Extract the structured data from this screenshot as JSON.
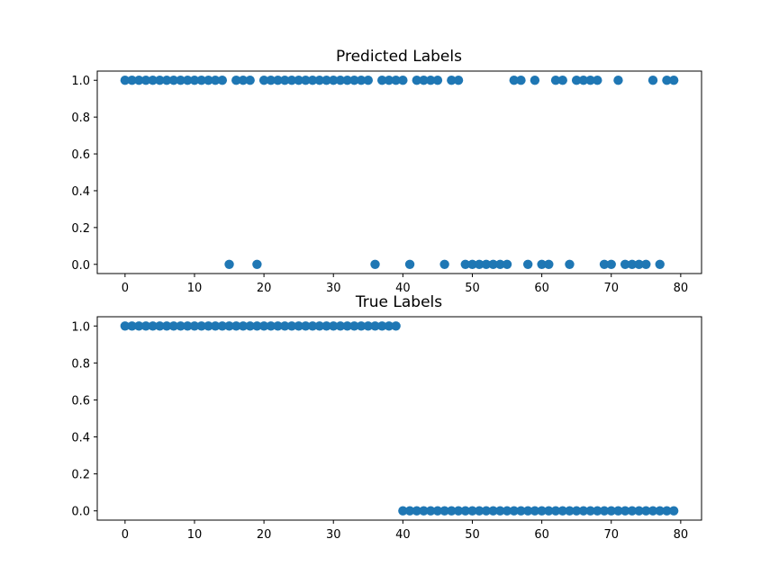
{
  "chart_data": [
    {
      "type": "scatter",
      "title": "Predicted Labels",
      "xlabel": "",
      "ylabel": "",
      "xlim": [
        -4,
        83
      ],
      "ylim": [
        -0.05,
        1.05
      ],
      "xticks": [
        0,
        10,
        20,
        30,
        40,
        50,
        60,
        70,
        80
      ],
      "yticks": [
        0.0,
        0.2,
        0.4,
        0.6,
        0.8,
        1.0
      ],
      "xtick_labels": [
        "0",
        "10",
        "20",
        "30",
        "40",
        "50",
        "60",
        "70",
        "80"
      ],
      "ytick_labels": [
        "0.0",
        "0.2",
        "0.4",
        "0.6",
        "0.8",
        "1.0"
      ],
      "grid": false,
      "series": [
        {
          "color": "#1f77b4",
          "x": [
            0,
            1,
            2,
            3,
            4,
            5,
            6,
            7,
            8,
            9,
            10,
            11,
            12,
            13,
            14,
            15,
            16,
            17,
            18,
            19,
            20,
            21,
            22,
            23,
            24,
            25,
            26,
            27,
            28,
            29,
            30,
            31,
            32,
            33,
            34,
            35,
            36,
            37,
            38,
            39,
            40,
            41,
            42,
            43,
            44,
            45,
            46,
            47,
            48,
            49,
            50,
            51,
            52,
            53,
            54,
            55,
            56,
            57,
            58,
            59,
            60,
            61,
            62,
            63,
            64,
            65,
            66,
            67,
            68,
            69,
            70,
            71,
            72,
            73,
            74,
            75,
            76,
            77,
            78,
            79
          ],
          "y": [
            1,
            1,
            1,
            1,
            1,
            1,
            1,
            1,
            1,
            1,
            1,
            1,
            1,
            1,
            1,
            0,
            1,
            1,
            1,
            0,
            1,
            1,
            1,
            1,
            1,
            1,
            1,
            1,
            1,
            1,
            1,
            1,
            1,
            1,
            1,
            1,
            0,
            1,
            1,
            1,
            1,
            0,
            1,
            1,
            1,
            1,
            0,
            1,
            1,
            0,
            0,
            0,
            0,
            0,
            0,
            0,
            1,
            1,
            0,
            1,
            0,
            0,
            1,
            1,
            0,
            1,
            1,
            1,
            1,
            0,
            0,
            1,
            0,
            0,
            0,
            0,
            1,
            0,
            1,
            1
          ]
        }
      ]
    },
    {
      "type": "scatter",
      "title": "True Labels",
      "xlabel": "",
      "ylabel": "",
      "xlim": [
        -4,
        83
      ],
      "ylim": [
        -0.05,
        1.05
      ],
      "xticks": [
        0,
        10,
        20,
        30,
        40,
        50,
        60,
        70,
        80
      ],
      "yticks": [
        0.0,
        0.2,
        0.4,
        0.6,
        0.8,
        1.0
      ],
      "xtick_labels": [
        "0",
        "10",
        "20",
        "30",
        "40",
        "50",
        "60",
        "70",
        "80"
      ],
      "ytick_labels": [
        "0.0",
        "0.2",
        "0.4",
        "0.6",
        "0.8",
        "1.0"
      ],
      "grid": false,
      "series": [
        {
          "color": "#1f77b4",
          "x": [
            0,
            1,
            2,
            3,
            4,
            5,
            6,
            7,
            8,
            9,
            10,
            11,
            12,
            13,
            14,
            15,
            16,
            17,
            18,
            19,
            20,
            21,
            22,
            23,
            24,
            25,
            26,
            27,
            28,
            29,
            30,
            31,
            32,
            33,
            34,
            35,
            36,
            37,
            38,
            39,
            40,
            41,
            42,
            43,
            44,
            45,
            46,
            47,
            48,
            49,
            50,
            51,
            52,
            53,
            54,
            55,
            56,
            57,
            58,
            59,
            60,
            61,
            62,
            63,
            64,
            65,
            66,
            67,
            68,
            69,
            70,
            71,
            72,
            73,
            74,
            75,
            76,
            77,
            78,
            79
          ],
          "y": [
            1,
            1,
            1,
            1,
            1,
            1,
            1,
            1,
            1,
            1,
            1,
            1,
            1,
            1,
            1,
            1,
            1,
            1,
            1,
            1,
            1,
            1,
            1,
            1,
            1,
            1,
            1,
            1,
            1,
            1,
            1,
            1,
            1,
            1,
            1,
            1,
            1,
            1,
            1,
            1,
            0,
            0,
            0,
            0,
            0,
            0,
            0,
            0,
            0,
            0,
            0,
            0,
            0,
            0,
            0,
            0,
            0,
            0,
            0,
            0,
            0,
            0,
            0,
            0,
            0,
            0,
            0,
            0,
            0,
            0,
            0,
            0,
            0,
            0,
            0,
            0,
            0,
            0,
            0,
            0
          ]
        }
      ]
    }
  ]
}
